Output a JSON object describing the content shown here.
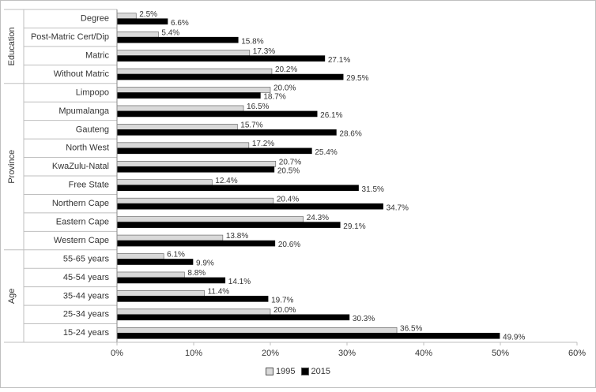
{
  "chart_data": {
    "type": "bar",
    "orientation": "horizontal",
    "x_ticks": [
      "0%",
      "10%",
      "20%",
      "30%",
      "40%",
      "50%",
      "60%"
    ],
    "xlim": [
      0,
      60
    ],
    "value_suffix": "%",
    "groups": [
      {
        "name": "Education",
        "categories": [
          "Degree",
          "Post-Matric Cert/Dip",
          "Matric",
          "Without Matric"
        ]
      },
      {
        "name": "Province",
        "categories": [
          "Limpopo",
          "Mpumalanga",
          "Gauteng",
          "North West",
          "KwaZulu-Natal",
          "Free State",
          "Northern Cape",
          "Eastern Cape",
          "Western Cape"
        ]
      },
      {
        "name": "Age",
        "categories": [
          "55-65 years",
          "45-54 years",
          "35-44 years",
          "25-34 years",
          "15-24 years"
        ]
      }
    ],
    "series": [
      {
        "name": "1995",
        "color": "#d9d9d9",
        "values": [
          2.5,
          5.4,
          17.3,
          20.2,
          20.0,
          16.5,
          15.7,
          17.2,
          20.7,
          12.4,
          20.4,
          24.3,
          13.8,
          6.1,
          8.8,
          11.4,
          20.0,
          36.5
        ]
      },
      {
        "name": "2015",
        "color": "#000000",
        "values": [
          6.6,
          15.8,
          27.1,
          29.5,
          18.7,
          26.1,
          28.6,
          25.4,
          20.5,
          31.5,
          34.7,
          29.1,
          20.6,
          9.9,
          14.1,
          19.7,
          30.3,
          49.9
        ]
      }
    ],
    "legend_position": "bottom",
    "grid": false
  }
}
